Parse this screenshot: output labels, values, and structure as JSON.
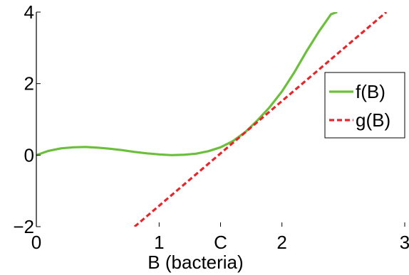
{
  "chart_data": {
    "type": "line",
    "xlabel": "B (bacteria)",
    "ylabel": "",
    "xlim": [
      0,
      3
    ],
    "ylim": [
      -2,
      4
    ],
    "x_ticks": [
      {
        "value": 0,
        "label": "0"
      },
      {
        "value": 1,
        "label": "1"
      },
      {
        "value": 1.5,
        "label": "C"
      },
      {
        "value": 2,
        "label": "2"
      },
      {
        "value": 3,
        "label": "3"
      }
    ],
    "y_ticks": [
      {
        "value": -2,
        "label": "−2"
      },
      {
        "value": 0,
        "label": "0"
      },
      {
        "value": 2,
        "label": "2"
      },
      {
        "value": 4,
        "label": "4"
      }
    ],
    "legend_position": "right",
    "series": [
      {
        "name": "f(B)",
        "color": "#6bbf3b",
        "style": "solid",
        "x": [
          0,
          0.1,
          0.2,
          0.3,
          0.4,
          0.5,
          0.6,
          0.7,
          0.8,
          0.9,
          1.0,
          1.1,
          1.2,
          1.3,
          1.4,
          1.5,
          1.6,
          1.7,
          1.8,
          1.9,
          2.0,
          2.1,
          2.2,
          2.3,
          2.4,
          2.45
        ],
        "y": [
          0.0,
          0.12,
          0.19,
          0.22,
          0.23,
          0.21,
          0.18,
          0.14,
          0.09,
          0.05,
          0.02,
          0.0,
          0.01,
          0.04,
          0.11,
          0.22,
          0.39,
          0.64,
          0.97,
          1.34,
          1.78,
          2.31,
          2.9,
          3.45,
          3.94,
          4.0
        ]
      },
      {
        "name": "g(B)",
        "color": "#e8262a",
        "style": "dashed",
        "x": [
          0.8,
          2.85
        ],
        "y": [
          -2.0,
          4.0
        ]
      }
    ]
  }
}
